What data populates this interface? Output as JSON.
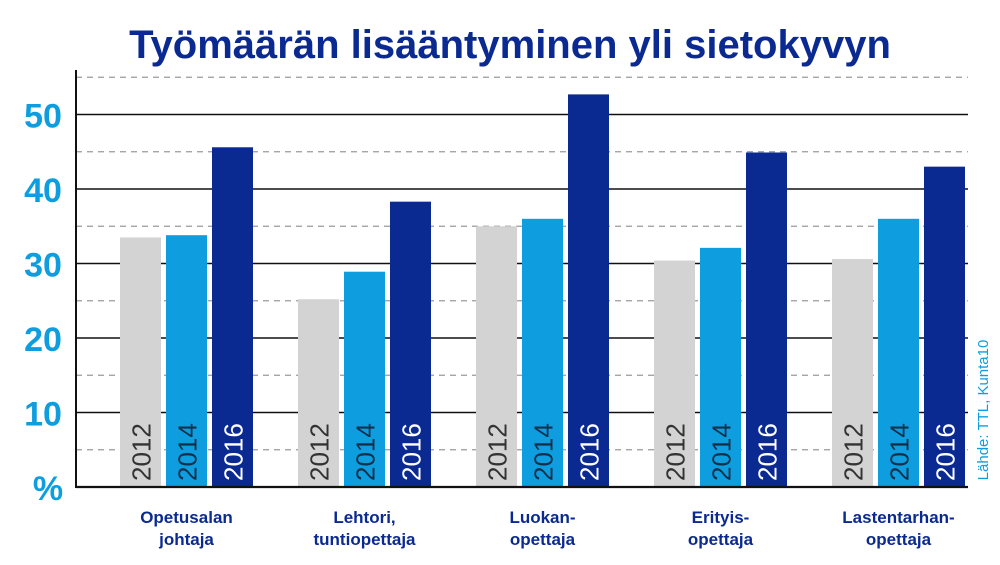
{
  "chart_data": {
    "type": "bar",
    "title": "Työmäärän lisääntyminen yli sietokyvyn",
    "ylabel": "%",
    "ylim": [
      0,
      55
    ],
    "yticks": [
      10,
      20,
      30,
      40,
      50
    ],
    "categories": [
      [
        "Opetusalan",
        "johtaja"
      ],
      [
        "Lehtori,",
        "tuntiopettaja"
      ],
      [
        "Luokan-",
        "opettaja"
      ],
      [
        "Erityis-",
        "opettaja"
      ],
      [
        "Lastentarhan-",
        "opettaja"
      ]
    ],
    "series": [
      {
        "name": "2012",
        "color": "#d3d3d3",
        "values": [
          33.5,
          25.2,
          35.0,
          30.4,
          30.6
        ]
      },
      {
        "name": "2014",
        "color": "#0e9ee0",
        "values": [
          33.8,
          28.9,
          36.0,
          32.1,
          36.0
        ]
      },
      {
        "name": "2016",
        "color": "#0a2a92",
        "values": [
          45.6,
          38.3,
          52.7,
          44.9,
          43.0
        ]
      }
    ],
    "source": "Lähde: TTL, Kunta10",
    "colors": {
      "title": "#0a2a92",
      "ytick": "#0e9ee0",
      "category": "#0a2a92",
      "source": "#0e9ee0",
      "year_label_light": "#333333",
      "year_label_dark": "#ffffff"
    }
  }
}
